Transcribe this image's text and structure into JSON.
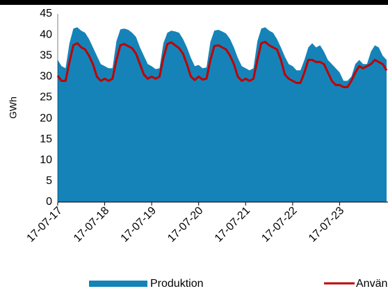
{
  "chart_data": {
    "type": "area-line",
    "y_label": "GWh",
    "x": [
      0,
      2,
      4,
      6,
      8,
      10,
      12,
      14,
      16,
      18,
      20,
      22,
      24,
      26,
      28,
      30,
      32,
      34,
      36,
      38,
      40,
      42,
      44,
      46,
      48,
      50,
      52,
      54,
      56,
      58,
      60,
      62,
      64,
      66,
      68,
      70,
      72,
      74,
      76,
      78,
      80,
      82,
      84,
      86,
      88,
      90,
      92,
      94,
      96,
      98,
      100,
      102,
      104,
      106,
      108,
      110,
      112,
      114,
      116,
      118,
      120,
      122,
      124,
      126,
      128,
      130,
      132,
      134,
      136,
      138,
      140,
      142,
      144,
      146,
      148,
      150,
      152,
      154,
      156,
      158,
      160,
      162,
      164,
      166,
      168
    ],
    "xlim": [
      0,
      168
    ],
    "xticks": [
      {
        "value": 0,
        "label": "17-07-17"
      },
      {
        "value": 24,
        "label": "17-07-18"
      },
      {
        "value": 48,
        "label": "17-07-19"
      },
      {
        "value": 72,
        "label": "17-07-20"
      },
      {
        "value": 96,
        "label": "17-07-21"
      },
      {
        "value": 120,
        "label": "17-07-22"
      },
      {
        "value": 144,
        "label": "17-07-23"
      }
    ],
    "ylim": [
      0,
      45
    ],
    "yticks": [
      0,
      5,
      10,
      15,
      20,
      25,
      30,
      35,
      40,
      45
    ],
    "series": [
      {
        "name": "Produktion",
        "kind": "area",
        "color": "#1583b8",
        "values": [
          34,
          32.5,
          32,
          38,
          41.5,
          41.8,
          41,
          40.5,
          39,
          37,
          35,
          33,
          32.5,
          32,
          32,
          38.5,
          41.3,
          41.5,
          41.2,
          40.5,
          39.5,
          37,
          35,
          33,
          32.5,
          31.8,
          32,
          38,
          40.5,
          41,
          40.8,
          40.5,
          39,
          37,
          34.5,
          32.5,
          32.8,
          32,
          32.2,
          38.3,
          41,
          41.2,
          40.8,
          40.3,
          39,
          37,
          34.5,
          32.5,
          32,
          31.5,
          32,
          38.5,
          41.5,
          41.8,
          41,
          40.5,
          39,
          37,
          34.8,
          33,
          32.5,
          31.5,
          31.5,
          34,
          37,
          38,
          37,
          37.5,
          36,
          34,
          33,
          32,
          31,
          29,
          29,
          30,
          33,
          34,
          33,
          33,
          36,
          37.5,
          37,
          35,
          34
        ]
      },
      {
        "name": "Användning",
        "kind": "line",
        "color": "#c00000",
        "values": [
          30.2,
          29,
          29,
          33.5,
          37.5,
          38,
          37,
          36.5,
          35,
          33,
          30,
          29,
          29.5,
          29,
          29.5,
          34,
          37.5,
          37.8,
          37.3,
          36.8,
          35.5,
          33,
          30.5,
          29.5,
          30,
          29.5,
          30,
          34.5,
          37.8,
          38.2,
          37.5,
          36.8,
          35.5,
          33,
          30,
          29.2,
          30,
          29.3,
          29.5,
          34,
          37.3,
          37.5,
          37,
          36.5,
          35,
          33,
          30,
          29,
          29.5,
          29,
          29.5,
          34,
          38,
          38.3,
          37.5,
          37,
          36.5,
          34,
          30.5,
          29.5,
          29,
          28.5,
          28.5,
          31,
          34,
          34,
          33.5,
          33.5,
          33,
          31,
          29,
          28,
          28,
          27.5,
          27.5,
          29,
          31,
          32.5,
          32,
          32.5,
          33,
          34,
          33.5,
          33,
          31.5
        ]
      }
    ]
  }
}
